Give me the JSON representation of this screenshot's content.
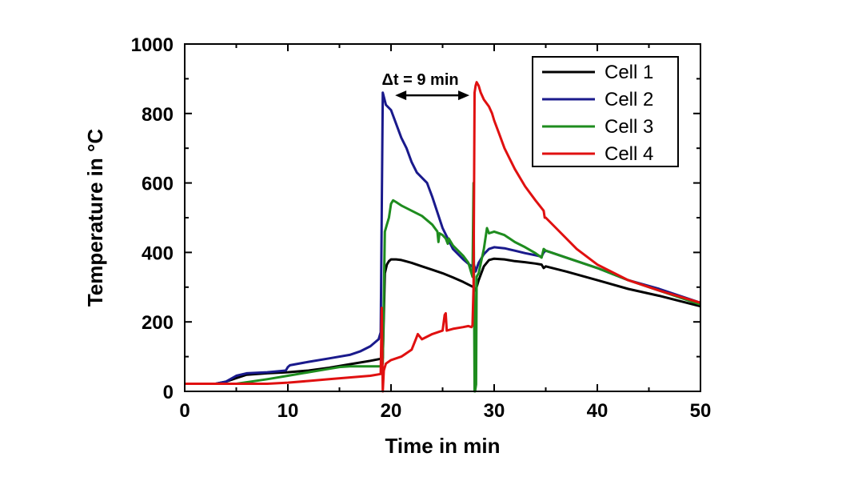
{
  "chart_data": {
    "type": "line",
    "title": "",
    "xlabel": "Time in min",
    "ylabel": "Temperature in °C",
    "xlim": [
      0,
      50
    ],
    "ylim": [
      0,
      1000
    ],
    "xticks": [
      0,
      10,
      20,
      30,
      40,
      50
    ],
    "yticks": [
      0,
      200,
      400,
      600,
      800,
      1000
    ],
    "xtick_labels": [
      "0",
      "10",
      "20",
      "30",
      "40",
      "50"
    ],
    "ytick_labels": [
      "0",
      "200",
      "400",
      "600",
      "800",
      "1000"
    ],
    "legend_position": "top-right",
    "annotation": {
      "text": "Δt = 9 min",
      "x_start": 20.4,
      "x_end": 27.6,
      "y": 850
    },
    "series": [
      {
        "name": "Cell 1",
        "color": "#000000",
        "x": [
          0,
          3,
          4,
          5,
          6,
          8,
          10,
          12,
          14,
          16,
          18,
          19.2,
          19.4,
          19.6,
          19.8,
          20.0,
          20.5,
          21,
          22,
          23,
          24,
          25,
          26,
          27,
          28,
          28.2,
          28.5,
          29,
          29.5,
          30,
          31,
          32,
          33,
          34,
          34.6,
          34.8,
          35,
          37,
          40,
          43,
          46,
          50
        ],
        "y": [
          22,
          22,
          28,
          38,
          48,
          52,
          55,
          60,
          68,
          78,
          88,
          95,
          340,
          365,
          375,
          380,
          380,
          378,
          370,
          360,
          350,
          340,
          328,
          315,
          300,
          290,
          320,
          360,
          378,
          382,
          380,
          375,
          372,
          368,
          365,
          355,
          360,
          345,
          320,
          295,
          275,
          245
        ]
      },
      {
        "name": "Cell 2",
        "color": "#1a1a8c",
        "x": [
          0,
          3,
          4,
          5,
          6,
          8,
          9.8,
          10.0,
          10.2,
          12,
          14,
          16,
          17,
          18,
          18.8,
          19.0,
          19.2,
          19.5,
          20,
          21,
          21.5,
          22,
          22.5,
          23,
          23.5,
          24,
          25,
          26,
          27,
          27.8,
          28.0,
          28.2,
          28.5,
          29,
          29.5,
          30,
          31,
          32,
          33,
          34,
          34.6,
          34.8,
          35,
          37,
          40,
          43,
          46,
          50
        ],
        "y": [
          22,
          22,
          28,
          45,
          52,
          55,
          60,
          70,
          75,
          85,
          95,
          105,
          115,
          130,
          150,
          170,
          860,
          825,
          810,
          730,
          700,
          660,
          630,
          615,
          600,
          560,
          470,
          410,
          380,
          360,
          370,
          345,
          370,
          395,
          410,
          415,
          412,
          405,
          398,
          392,
          388,
          400,
          405,
          385,
          355,
          320,
          295,
          255
        ]
      },
      {
        "name": "Cell 3",
        "color": "#1e8c1e",
        "x": [
          0,
          5,
          8,
          10,
          12,
          14,
          15,
          16,
          17,
          18,
          19.0,
          19.2,
          19.4,
          19.6,
          19.8,
          20.0,
          20.2,
          20.5,
          21,
          22,
          23,
          24,
          24.5,
          24.6,
          24.7,
          25,
          25.3,
          25.5,
          25.6,
          26,
          27,
          27.5,
          27.7,
          27.9,
          28.0,
          28.1,
          28.15,
          28.25,
          28.3,
          28.5,
          29,
          29.3,
          29.5,
          30,
          31,
          32,
          33,
          34,
          34.6,
          34.8,
          35,
          37,
          40,
          43,
          46,
          50
        ],
        "y": [
          22,
          22,
          35,
          45,
          55,
          65,
          70,
          72,
          72,
          72,
          72,
          80,
          460,
          480,
          500,
          540,
          550,
          545,
          535,
          520,
          505,
          480,
          460,
          430,
          455,
          450,
          440,
          425,
          440,
          420,
          390,
          370,
          350,
          330,
          600,
          0,
          0,
          20,
          330,
          340,
          410,
          470,
          455,
          460,
          450,
          430,
          415,
          398,
          385,
          410,
          405,
          385,
          355,
          320,
          290,
          250
        ]
      },
      {
        "name": "Cell 4",
        "color": "#e01010",
        "x": [
          0,
          5,
          8,
          10,
          12,
          14,
          16,
          18,
          19.0,
          19.1,
          19.2,
          19.3,
          19.4,
          19.5,
          20,
          21,
          21.5,
          22,
          22.4,
          22.6,
          23,
          24,
          25,
          25.2,
          25.3,
          25.4,
          26,
          27,
          27.5,
          27.8,
          27.9,
          28.0,
          28.1,
          28.2,
          28.3,
          28.5,
          28.7,
          29,
          29.5,
          29.8,
          30,
          30.5,
          31,
          32,
          33,
          34,
          34.8,
          34.9,
          35,
          36,
          38,
          40,
          43,
          46,
          50
        ],
        "y": [
          22,
          22,
          22,
          25,
          30,
          35,
          40,
          45,
          50,
          240,
          0,
          60,
          70,
          80,
          90,
          100,
          110,
          120,
          150,
          165,
          150,
          165,
          175,
          220,
          225,
          175,
          180,
          185,
          188,
          185,
          190,
          300,
          860,
          880,
          890,
          880,
          860,
          840,
          820,
          800,
          780,
          740,
          700,
          640,
          590,
          550,
          520,
          500,
          500,
          470,
          410,
          365,
          320,
          290,
          255
        ]
      }
    ]
  }
}
